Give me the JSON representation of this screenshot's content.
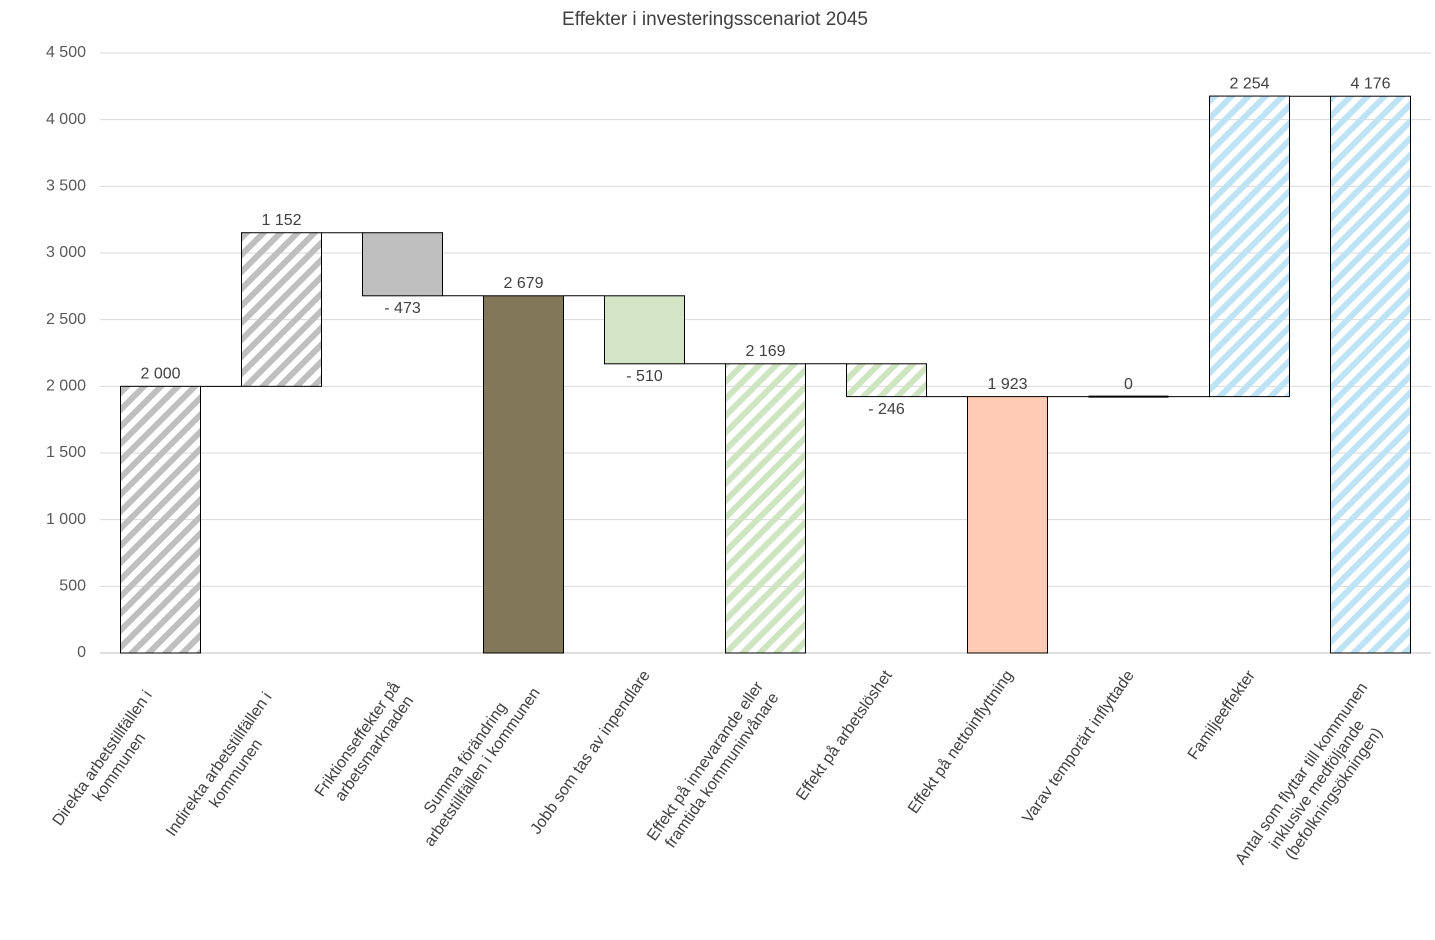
{
  "chart_data": {
    "type": "waterfall",
    "title": "Effekter i investeringsscenariot 2045",
    "categories": [
      "Direkta arbetstillfällen i kommunen",
      "Indirekta arbetstillfällen i kommunen",
      "Friktionseffekter på arbetsmarknaden",
      "Summa förändring arbetstillfällen i kommunen",
      "Jobb som tas av inpendlare",
      "Effekt på innevarande eller framtida kommuninvånare",
      "Effekt på arbetslöshet",
      "Effekt på nettoinflyttning",
      "Varav temporärt inflyttade",
      "Familjeeffekter",
      "Antal som flyttar till kommunen inklusive medföljande (befolkningsökningen)"
    ],
    "values": [
      2000,
      1152,
      -473,
      2679,
      -510,
      2169,
      -246,
      1923,
      0,
      2254,
      4176
    ],
    "value_labels": [
      "2 000",
      "1 152",
      "- 473",
      "2 679",
      "- 510",
      "2 169",
      "- 246",
      "1 923",
      "0",
      "2 254",
      "4 176"
    ],
    "totals": [
      true,
      false,
      false,
      true,
      false,
      true,
      false,
      true,
      false,
      false,
      true
    ],
    "colors": [
      "#bfbfbf",
      "#bfbfbf",
      "#bfbfbf",
      "#807858",
      "#d3e5c4",
      "#cfe4c0",
      "#cfe4c0",
      "#ffcbb5",
      "#000000",
      "#bde3f5",
      "#bde3f5"
    ],
    "hatched": [
      true,
      true,
      false,
      false,
      false,
      true,
      true,
      false,
      false,
      true,
      true
    ],
    "ylim": [
      0,
      4500
    ],
    "yticks": [
      0,
      500,
      {
        "value": 1000,
        "label": "1 000"
      },
      {
        "value": 1500,
        "label": "1 500"
      },
      {
        "value": 2000,
        "label": "2 000"
      },
      {
        "value": 2500,
        "label": "2 500"
      },
      {
        "value": 3000,
        "label": "3 000"
      },
      {
        "value": 3500,
        "label": "3 500"
      },
      {
        "value": 4000,
        "label": "4 000"
      },
      {
        "value": 4500,
        "label": "4 500"
      }
    ],
    "grid": true
  }
}
